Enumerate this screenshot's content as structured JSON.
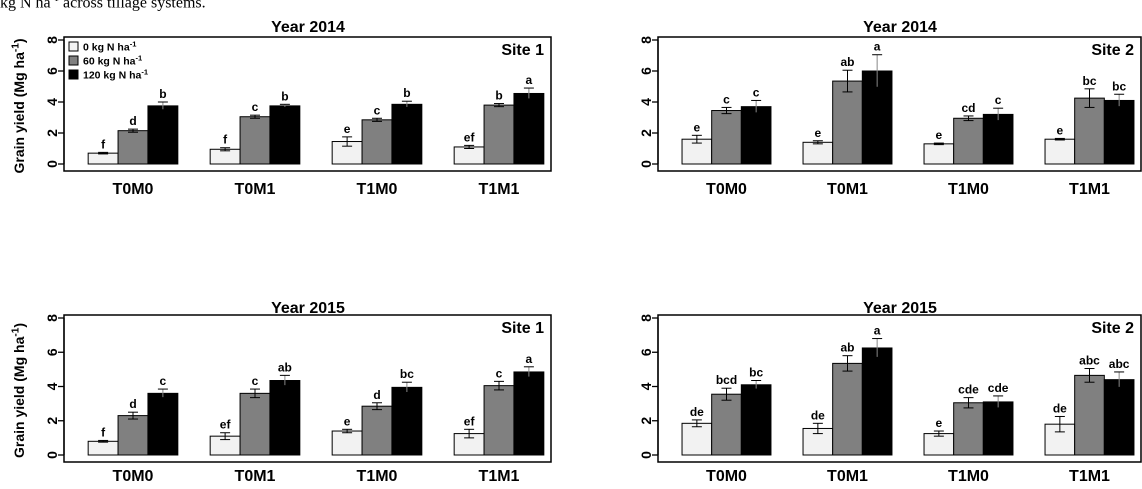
{
  "caption": {
    "text": "kg N ha",
    "sup": "-1",
    "rest": " across tillage systems."
  },
  "y_axis_label": "Grain yield (Mg ha-1)",
  "legend": [
    "0 kg N ha-1",
    "60 kg N ha-1",
    "120 kg N ha-1"
  ],
  "colors": {
    "0 kg N ha-1": "#f2f2f2",
    "60 kg N ha-1": "#808080",
    "120 kg N ha-1": "#000000"
  },
  "chart_data": [
    {
      "type": "bar",
      "title": "Year 2014",
      "site": "Site 1",
      "categories": [
        "T0M0",
        "T0M1",
        "T1M0",
        "T1M1"
      ],
      "ylim": [
        0,
        8
      ],
      "yticks": [
        0,
        2,
        4,
        6,
        8
      ],
      "series": [
        {
          "name": "0 kg N ha-1",
          "values": [
            0.7,
            0.95,
            1.45,
            1.1
          ],
          "errors": [
            0.05,
            0.1,
            0.3,
            0.1
          ],
          "labels": [
            "f",
            "f",
            "e",
            "ef"
          ]
        },
        {
          "name": "60 kg N ha-1",
          "values": [
            2.15,
            3.05,
            2.85,
            3.8
          ],
          "errors": [
            0.1,
            0.1,
            0.1,
            0.1
          ],
          "labels": [
            "d",
            "c",
            "c",
            "b"
          ]
        },
        {
          "name": "120 kg N ha-1",
          "values": [
            3.75,
            3.75,
            3.85,
            4.55
          ],
          "errors": [
            0.25,
            0.1,
            0.2,
            0.35
          ],
          "labels": [
            "b",
            "b",
            "b",
            "a"
          ]
        }
      ]
    },
    {
      "type": "bar",
      "title": "Year 2014",
      "site": "Site 2",
      "categories": [
        "T0M0",
        "T0M1",
        "T1M0",
        "T1M1"
      ],
      "ylim": [
        0,
        8
      ],
      "yticks": [
        0,
        2,
        4,
        6,
        8
      ],
      "series": [
        {
          "name": "0 kg N ha-1",
          "values": [
            1.6,
            1.4,
            1.3,
            1.6
          ],
          "errors": [
            0.25,
            0.1,
            0.05,
            0.05
          ],
          "labels": [
            "e",
            "e",
            "e",
            "e"
          ]
        },
        {
          "name": "60 kg N ha-1",
          "values": [
            3.45,
            5.35,
            2.95,
            4.25
          ],
          "errors": [
            0.2,
            0.7,
            0.15,
            0.6
          ],
          "labels": [
            "c",
            "ab",
            "cd",
            "bc"
          ]
        },
        {
          "name": "120 kg N ha-1",
          "values": [
            3.7,
            6.0,
            3.2,
            4.1
          ],
          "errors": [
            0.4,
            1.05,
            0.4,
            0.4
          ],
          "labels": [
            "c",
            "a",
            "c",
            "bc"
          ]
        }
      ]
    },
    {
      "type": "bar",
      "title": "Year 2015",
      "site": "Site 1",
      "categories": [
        "T0M0",
        "T0M1",
        "T1M0",
        "T1M1"
      ],
      "ylim": [
        0,
        8
      ],
      "yticks": [
        0,
        2,
        4,
        6,
        8
      ],
      "series": [
        {
          "name": "0 kg N ha-1",
          "values": [
            0.8,
            1.1,
            1.4,
            1.25
          ],
          "errors": [
            0.05,
            0.2,
            0.1,
            0.25
          ],
          "labels": [
            "f",
            "ef",
            "e",
            "ef"
          ]
        },
        {
          "name": "60 kg N ha-1",
          "values": [
            2.3,
            3.6,
            2.85,
            4.05
          ],
          "errors": [
            0.2,
            0.25,
            0.2,
            0.25
          ],
          "labels": [
            "d",
            "c",
            "d",
            "c"
          ]
        },
        {
          "name": "120 kg N ha-1",
          "values": [
            3.6,
            4.35,
            3.95,
            4.85
          ],
          "errors": [
            0.25,
            0.3,
            0.3,
            0.3
          ],
          "labels": [
            "c",
            "ab",
            "bc",
            "a"
          ]
        }
      ]
    },
    {
      "type": "bar",
      "title": "Year 2015",
      "site": "Site 2",
      "categories": [
        "T0M0",
        "T0M1",
        "T1M0",
        "T1M1"
      ],
      "ylim": [
        0,
        8
      ],
      "yticks": [
        0,
        2,
        4,
        6,
        8
      ],
      "series": [
        {
          "name": "0 kg N ha-1",
          "values": [
            1.85,
            1.55,
            1.25,
            1.8
          ],
          "errors": [
            0.2,
            0.3,
            0.15,
            0.45
          ],
          "labels": [
            "de",
            "de",
            "e",
            "de"
          ]
        },
        {
          "name": "60 kg N ha-1",
          "values": [
            3.55,
            5.35,
            3.05,
            4.65
          ],
          "errors": [
            0.35,
            0.45,
            0.3,
            0.4
          ],
          "labels": [
            "bcd",
            "ab",
            "cde",
            "abc"
          ]
        },
        {
          "name": "120 kg N ha-1",
          "values": [
            4.1,
            6.25,
            3.1,
            4.4
          ],
          "errors": [
            0.25,
            0.55,
            0.35,
            0.45
          ],
          "labels": [
            "bc",
            "a",
            "cde",
            "abc"
          ]
        }
      ]
    }
  ]
}
